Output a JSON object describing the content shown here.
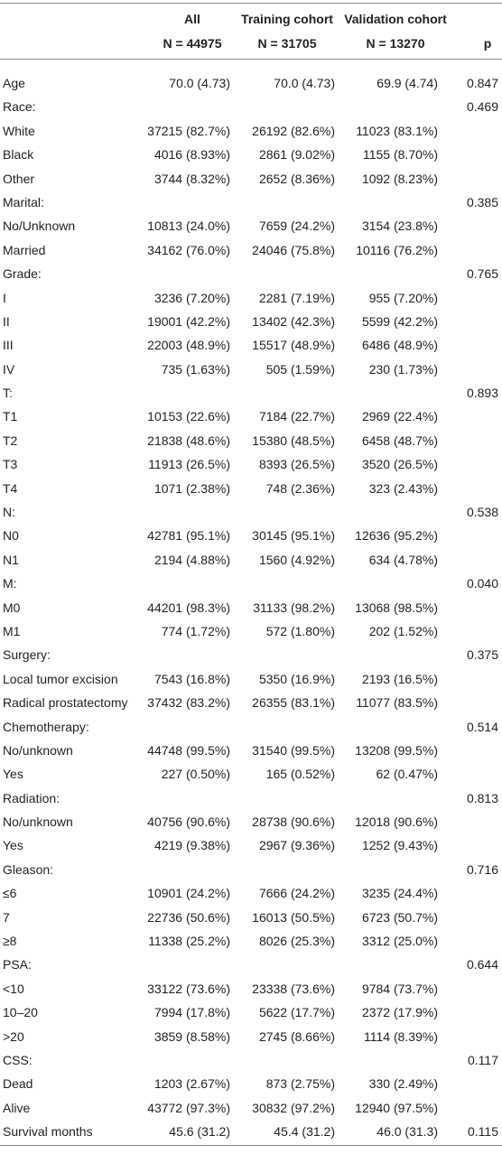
{
  "table": {
    "header": {
      "groups": [
        "All",
        "Training cohort",
        "Validation cohort"
      ],
      "counts": [
        "N = 44975",
        "N = 31705",
        "N = 13270"
      ],
      "p": "p"
    },
    "rows": [
      {
        "label": "Age",
        "all": "70.0 (4.73)",
        "training": "70.0 (4.73)",
        "validation": "69.9 (4.74)",
        "p": "0.847"
      },
      {
        "label": "Race:",
        "p": "0.469"
      },
      {
        "label": "White",
        "all": "37215 (82.7%)",
        "training": "26192 (82.6%)",
        "validation": "11023 (83.1%)"
      },
      {
        "label": "Black",
        "all": "4016 (8.93%)",
        "training": "2861 (9.02%)",
        "validation": "1155 (8.70%)"
      },
      {
        "label": "Other",
        "all": "3744 (8.32%)",
        "training": "2652 (8.36%)",
        "validation": "1092 (8.23%)"
      },
      {
        "label": "Marital:",
        "p": "0.385"
      },
      {
        "label": "No/Unknown",
        "all": "10813 (24.0%)",
        "training": "7659 (24.2%)",
        "validation": "3154 (23.8%)"
      },
      {
        "label": "Married",
        "all": "34162 (76.0%)",
        "training": "24046 (75.8%)",
        "validation": "10116 (76.2%)"
      },
      {
        "label": "Grade:",
        "p": "0.765"
      },
      {
        "label": "I",
        "all": "3236 (7.20%)",
        "training": "2281 (7.19%)",
        "validation": "955 (7.20%)"
      },
      {
        "label": "II",
        "all": "19001 (42.2%)",
        "training": "13402 (42.3%)",
        "validation": "5599 (42.2%)"
      },
      {
        "label": "III",
        "all": "22003 (48.9%)",
        "training": "15517 (48.9%)",
        "validation": "6486 (48.9%)"
      },
      {
        "label": "IV",
        "all": "735 (1.63%)",
        "training": "505 (1.59%)",
        "validation": "230 (1.73%)"
      },
      {
        "label": "T:",
        "p": "0.893"
      },
      {
        "label": "T1",
        "all": "10153 (22.6%)",
        "training": "7184 (22.7%)",
        "validation": "2969 (22.4%)"
      },
      {
        "label": "T2",
        "all": "21838 (48.6%)",
        "training": "15380 (48.5%)",
        "validation": "6458 (48.7%)"
      },
      {
        "label": "T3",
        "all": "11913 (26.5%)",
        "training": "8393 (26.5%)",
        "validation": "3520 (26.5%)"
      },
      {
        "label": "T4",
        "all": "1071 (2.38%)",
        "training": "748 (2.36%)",
        "validation": "323 (2.43%)"
      },
      {
        "label": "N:",
        "p": "0.538"
      },
      {
        "label": "N0",
        "all": "42781 (95.1%)",
        "training": "30145 (95.1%)",
        "validation": "12636 (95.2%)"
      },
      {
        "label": "N1",
        "all": "2194 (4.88%)",
        "training": "1560 (4.92%)",
        "validation": "634 (4.78%)"
      },
      {
        "label": "M:",
        "p": "0.040"
      },
      {
        "label": "M0",
        "all": "44201 (98.3%)",
        "training": "31133 (98.2%)",
        "validation": "13068 (98.5%)"
      },
      {
        "label": "M1",
        "all": "774 (1.72%)",
        "training": "572 (1.80%)",
        "validation": "202 (1.52%)"
      },
      {
        "label": "Surgery:",
        "p": "0.375"
      },
      {
        "label": "Local tumor excision",
        "all": "7543 (16.8%)",
        "training": "5350 (16.9%)",
        "validation": "2193 (16.5%)"
      },
      {
        "label": "Radical prostatectomy",
        "all": "37432 (83.2%)",
        "training": "26355 (83.1%)",
        "validation": "11077 (83.5%)"
      },
      {
        "label": "Chemotherapy:",
        "p": "0.514"
      },
      {
        "label": "No/unknown",
        "all": "44748 (99.5%)",
        "training": "31540 (99.5%)",
        "validation": "13208 (99.5%)"
      },
      {
        "label": "Yes",
        "all": "227 (0.50%)",
        "training": "165 (0.52%)",
        "validation": "62 (0.47%)"
      },
      {
        "label": "Radiation:",
        "p": "0.813"
      },
      {
        "label": "No/unknown",
        "all": "40756 (90.6%)",
        "training": "28738 (90.6%)",
        "validation": "12018 (90.6%)"
      },
      {
        "label": "Yes",
        "all": "4219 (9.38%)",
        "training": "2967 (9.36%)",
        "validation": "1252 (9.43%)"
      },
      {
        "label": "Gleason:",
        "p": "0.716"
      },
      {
        "label": "≤6",
        "all": "10901 (24.2%)",
        "training": "7666 (24.2%)",
        "validation": "3235 (24.4%)"
      },
      {
        "label": "7",
        "all": "22736 (50.6%)",
        "training": "16013 (50.5%)",
        "validation": "6723 (50.7%)"
      },
      {
        "label": "≥8",
        "all": "11338 (25.2%)",
        "training": "8026 (25.3%)",
        "validation": "3312 (25.0%)"
      },
      {
        "label": "PSA:",
        "p": "0.644"
      },
      {
        "label": "<10",
        "all": "33122 (73.6%)",
        "training": "23338 (73.6%)",
        "validation": "9784 (73.7%)"
      },
      {
        "label": "10–20",
        "all": "7994 (17.8%)",
        "training": "5622 (17.7%)",
        "validation": "2372 (17.9%)"
      },
      {
        "label": ">20",
        "all": "3859 (8.58%)",
        "training": "2745 (8.66%)",
        "validation": "1114 (8.39%)"
      },
      {
        "label": "CSS:",
        "p": "0.117"
      },
      {
        "label": "Dead",
        "all": "1203 (2.67%)",
        "training": "873 (2.75%)",
        "validation": "330 (2.49%)"
      },
      {
        "label": "Alive",
        "all": "43772 (97.3%)",
        "training": "30832 (97.2%)",
        "validation": "12940 (97.5%)"
      },
      {
        "label": "Survival months",
        "all": "45.6 (31.2)",
        "training": "45.4 (31.2)",
        "validation": "46.0 (31.3)",
        "p": "0.115"
      }
    ]
  }
}
